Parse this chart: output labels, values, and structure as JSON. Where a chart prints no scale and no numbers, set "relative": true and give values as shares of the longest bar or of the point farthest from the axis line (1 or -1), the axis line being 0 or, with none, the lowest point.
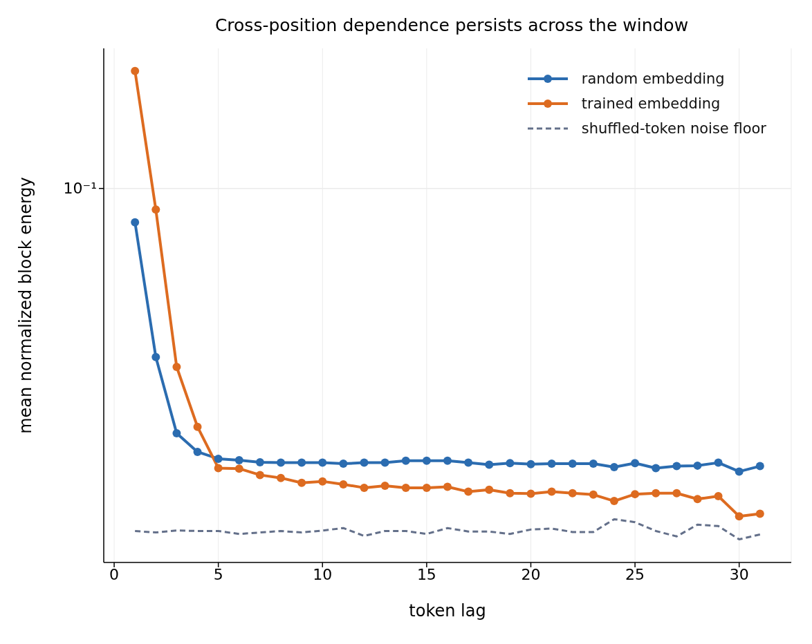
{
  "chart_data": {
    "type": "line",
    "title": "Cross-position dependence persists across the window",
    "xlabel": "token lag",
    "ylabel": "mean normalized block energy",
    "x": [
      1,
      2,
      3,
      4,
      5,
      6,
      7,
      8,
      9,
      10,
      11,
      12,
      13,
      14,
      15,
      16,
      17,
      18,
      19,
      20,
      21,
      22,
      23,
      24,
      25,
      26,
      27,
      28,
      29,
      30,
      31
    ],
    "series": [
      {
        "name": "random embedding",
        "color": "#2b6cb0",
        "values": [
          0.692,
          0.418,
          0.263,
          0.225,
          0.211,
          0.208,
          0.204,
          0.203,
          0.203,
          0.203,
          0.201,
          0.203,
          0.203,
          0.207,
          0.207,
          0.207,
          0.203,
          0.199,
          0.202,
          0.2,
          0.201,
          0.201,
          0.201,
          0.194,
          0.202,
          0.192,
          0.196,
          0.197,
          0.203,
          0.185,
          0.196
        ]
      },
      {
        "name": "trained embedding",
        "color": "#dd6b20",
        "values": [
          1.0,
          0.718,
          0.398,
          0.276,
          0.192,
          0.191,
          0.178,
          0.172,
          0.162,
          0.165,
          0.159,
          0.152,
          0.156,
          0.152,
          0.152,
          0.154,
          0.144,
          0.148,
          0.141,
          0.14,
          0.144,
          0.141,
          0.138,
          0.125,
          0.139,
          0.141,
          0.141,
          0.129,
          0.135,
          0.094,
          0.099
        ]
      },
      {
        "name": "shuffled-token noise floor",
        "color": "#64708a",
        "marker": "none",
        "line_style": "dashed",
        "values": [
          0.064,
          0.061,
          0.065,
          0.064,
          0.064,
          0.058,
          0.061,
          0.064,
          0.061,
          0.065,
          0.07,
          0.054,
          0.064,
          0.064,
          0.058,
          0.07,
          0.063,
          0.063,
          0.058,
          0.067,
          0.069,
          0.062,
          0.062,
          0.088,
          0.082,
          0.064,
          0.053,
          0.077,
          0.074,
          0.047,
          0.057
        ]
      }
    ],
    "relative": true,
    "xlim": [
      -0.5,
      32.5
    ],
    "xticks": [
      0,
      5,
      10,
      15,
      20,
      25,
      30
    ],
    "ref_lines": [
      {
        "axis": "y",
        "value": 0.761,
        "label": "10⁻¹",
        "color": "#ebebeb"
      }
    ],
    "grid": "x",
    "legend": "top right",
    "marker": "circle",
    "line_style": "solid"
  }
}
